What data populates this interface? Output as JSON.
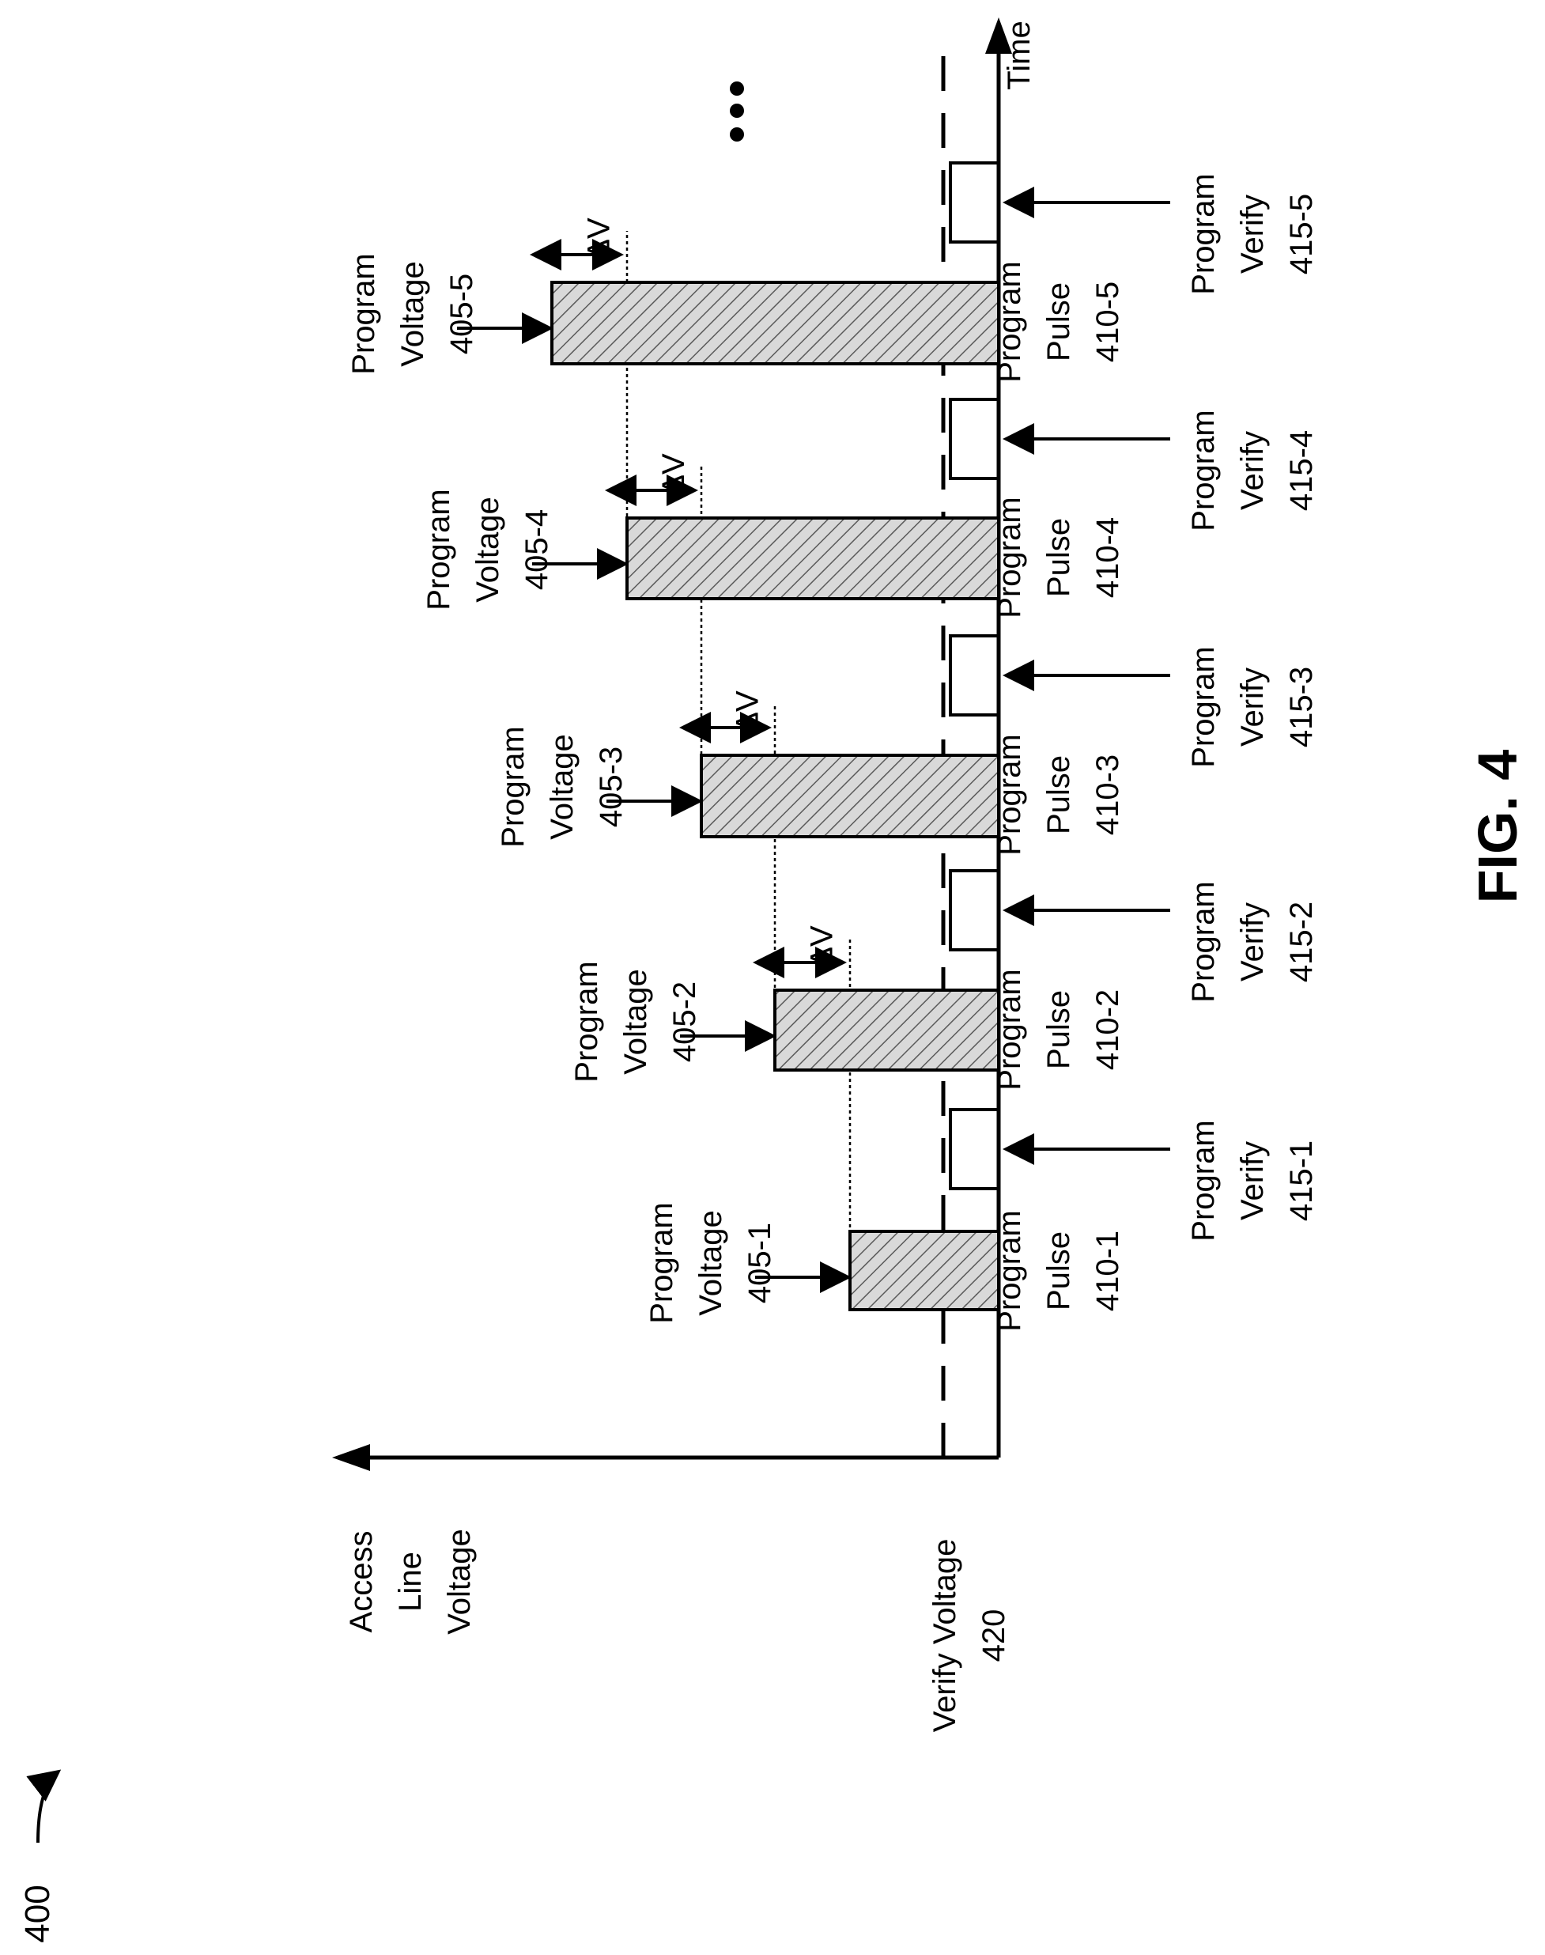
{
  "figure_ref": "400",
  "figure_caption": "FIG. 4",
  "axes": {
    "time_label": "Time",
    "voltage_label": [
      "Access",
      "Line",
      "Voltage"
    ]
  },
  "verify_voltage_label": [
    "Verify Voltage",
    "420"
  ],
  "ellipsis": "•••",
  "delta_label": "ΔV",
  "stages": [
    {
      "program_voltage": [
        "Program",
        "Voltage",
        "405-1"
      ],
      "program_pulse": [
        "Program",
        "Pulse",
        "410-1"
      ],
      "program_verify": [
        "Program",
        "Verify",
        "415-1"
      ]
    },
    {
      "program_voltage": [
        "Program",
        "Voltage",
        "405-2"
      ],
      "program_pulse": [
        "Program",
        "Pulse",
        "410-2"
      ],
      "program_verify": [
        "Program",
        "Verify",
        "415-2"
      ]
    },
    {
      "program_voltage": [
        "Program",
        "Voltage",
        "405-3"
      ],
      "program_pulse": [
        "Program",
        "Pulse",
        "410-3"
      ],
      "program_verify": [
        "Program",
        "Verify",
        "415-3"
      ]
    },
    {
      "program_voltage": [
        "Program",
        "Voltage",
        "405-4"
      ],
      "program_pulse": [
        "Program",
        "Pulse",
        "410-4"
      ],
      "program_verify": [
        "Program",
        "Verify",
        "415-4"
      ]
    },
    {
      "program_voltage": [
        "Program",
        "Voltage",
        "405-5"
      ],
      "program_pulse": [
        "Program",
        "Pulse",
        "410-5"
      ],
      "program_verify": [
        "Program",
        "Verify",
        "415-5"
      ]
    }
  ],
  "colors": {
    "ink": "#000000",
    "pulse_fill": "#d9d9d9",
    "background": "#ffffff"
  }
}
